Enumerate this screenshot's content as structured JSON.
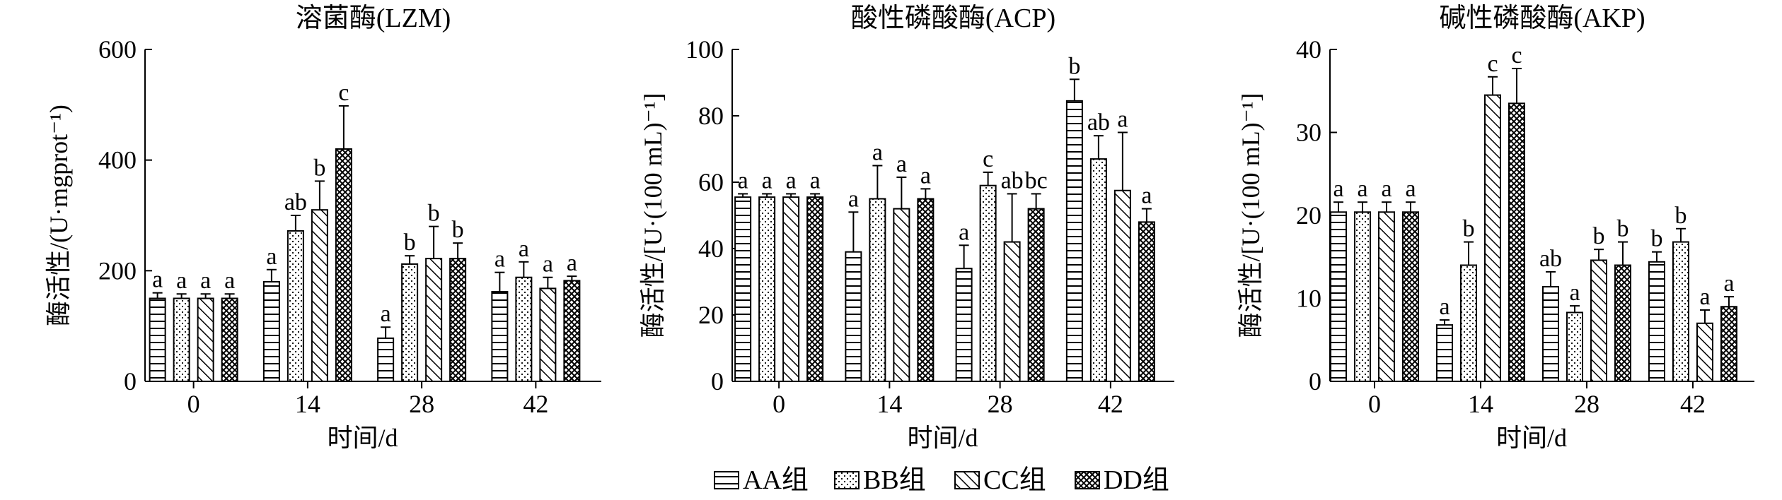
{
  "legend": [
    {
      "name": "AA组",
      "pattern": "horizontal"
    },
    {
      "name": "BB组",
      "pattern": "dots"
    },
    {
      "name": "CC组",
      "pattern": "diagonal"
    },
    {
      "name": "DD组",
      "pattern": "crosshatch"
    }
  ],
  "chart_data": [
    {
      "type": "bar",
      "title": "溶菌酶(LZM)",
      "xlabel": "时间/d",
      "ylabel": "酶活性/(U·mgprot⁻¹)",
      "categories": [
        "0",
        "14",
        "28",
        "42"
      ],
      "ylim": [
        0,
        600
      ],
      "yticks": [
        "0",
        "200",
        "400",
        "600"
      ],
      "series": [
        {
          "name": "AA组",
          "values": [
            150,
            180,
            78,
            162
          ],
          "errors": [
            10,
            22,
            20,
            35
          ],
          "labels": [
            "a",
            "a",
            "a",
            "a"
          ]
        },
        {
          "name": "BB组",
          "values": [
            150,
            272,
            212,
            188
          ],
          "errors": [
            8,
            28,
            15,
            28
          ],
          "labels": [
            "a",
            "ab",
            "b",
            "a"
          ]
        },
        {
          "name": "CC组",
          "values": [
            150,
            310,
            222,
            168
          ],
          "errors": [
            8,
            52,
            58,
            20
          ],
          "labels": [
            "a",
            "b",
            "b",
            "a"
          ]
        },
        {
          "name": "DD组",
          "values": [
            150,
            420,
            222,
            182
          ],
          "errors": [
            8,
            78,
            28,
            8
          ],
          "labels": [
            "a",
            "c",
            "b",
            "a"
          ]
        }
      ]
    },
    {
      "type": "bar",
      "title": "酸性磷酸酶(ACP)",
      "xlabel": "时间/d",
      "ylabel": "酶活性/[U·(100 mL)⁻¹]",
      "categories": [
        "0",
        "14",
        "28",
        "42"
      ],
      "ylim": [
        0,
        100
      ],
      "yticks": [
        "0",
        "20",
        "40",
        "60",
        "80",
        "100"
      ],
      "series": [
        {
          "name": "AA组",
          "values": [
            55.5,
            39,
            34,
            84.5
          ],
          "errors": [
            1,
            12,
            7,
            6.5
          ],
          "labels": [
            "a",
            "a",
            "a",
            "b"
          ]
        },
        {
          "name": "BB组",
          "values": [
            55.5,
            55,
            59,
            67
          ],
          "errors": [
            1,
            10,
            4,
            7
          ],
          "labels": [
            "a",
            "a",
            "c",
            "ab"
          ]
        },
        {
          "name": "CC组",
          "values": [
            55.5,
            52,
            42,
            57.5
          ],
          "errors": [
            1,
            9.5,
            14.5,
            17.5
          ],
          "labels": [
            "a",
            "a",
            "ab",
            "a"
          ]
        },
        {
          "name": "DD组",
          "values": [
            55.5,
            55,
            52,
            48
          ],
          "errors": [
            1,
            3,
            4.5,
            4
          ],
          "labels": [
            "a",
            "a",
            "bc",
            "a"
          ]
        }
      ]
    },
    {
      "type": "bar",
      "title": "碱性磷酸酶(AKP)",
      "xlabel": "时间/d",
      "ylabel": "酶活性/[U·(100 mL)⁻¹]",
      "categories": [
        "0",
        "14",
        "28",
        "42"
      ],
      "ylim": [
        0,
        40
      ],
      "yticks": [
        "0",
        "10",
        "20",
        "30",
        "40"
      ],
      "series": [
        {
          "name": "AA组",
          "values": [
            20.4,
            6.8,
            11.4,
            14.4
          ],
          "errors": [
            1.2,
            0.6,
            1.8,
            1.2
          ],
          "labels": [
            "a",
            "a",
            "ab",
            "b"
          ]
        },
        {
          "name": "BB组",
          "values": [
            20.4,
            14,
            8.3,
            16.8
          ],
          "errors": [
            1.2,
            2.8,
            0.8,
            1.6
          ],
          "labels": [
            "a",
            "b",
            "a",
            "b"
          ]
        },
        {
          "name": "CC组",
          "values": [
            20.4,
            34.5,
            14.6,
            7
          ],
          "errors": [
            1.2,
            2.2,
            1.3,
            1.6
          ],
          "labels": [
            "a",
            "c",
            "b",
            "a"
          ]
        },
        {
          "name": "DD组",
          "values": [
            20.4,
            33.5,
            14,
            9
          ],
          "errors": [
            1.2,
            4.2,
            2.8,
            1.2
          ],
          "labels": [
            "a",
            "c",
            "b",
            "a"
          ]
        }
      ]
    }
  ]
}
